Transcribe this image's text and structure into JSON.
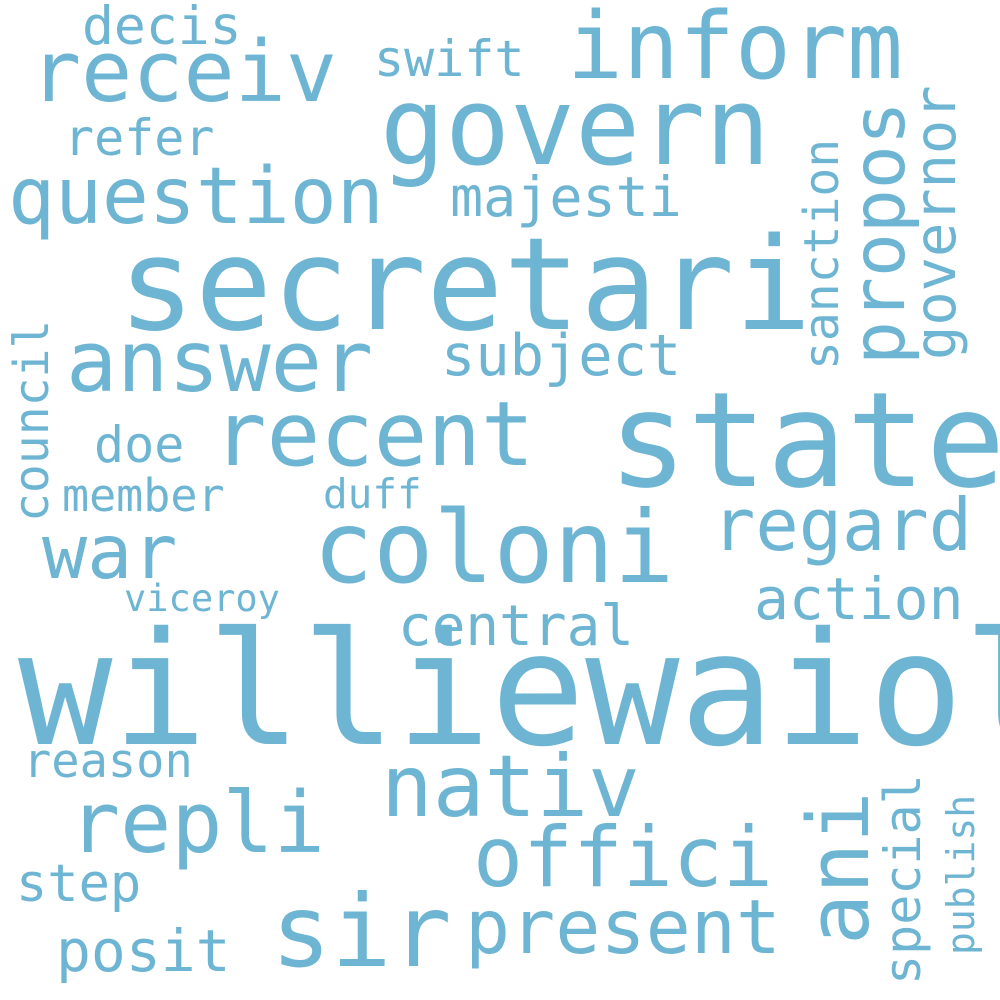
{
  "colors": {
    "background": "#ffffff",
    "word": "#6db5d2"
  },
  "words": {
    "williewaiola": "williewaiola",
    "secretari": "secretari",
    "state": "state",
    "govern": "govern",
    "coloni": "coloni",
    "inform": "inform",
    "receiv": "receiv",
    "answer": "answer",
    "question": "question",
    "recent": "recent",
    "nativ": "nativ",
    "sir": "sir",
    "ani": "ani",
    "repli": "repli",
    "offici": "offici",
    "war": "war",
    "regard": "regard",
    "present": "present",
    "propos": "propos",
    "majesti": "majesti",
    "subject": "subject",
    "governor": "governor",
    "sanction": "sanction",
    "action": "action",
    "central": "central",
    "posit": "posit",
    "decis": "decis",
    "swift": "swift",
    "refer": "refer",
    "doe": "doe",
    "member": "member",
    "council": "council",
    "reason": "reason",
    "step": "step",
    "special": "special",
    "publish": "publish",
    "duff": "duff",
    "viceroy": "viceroy"
  }
}
